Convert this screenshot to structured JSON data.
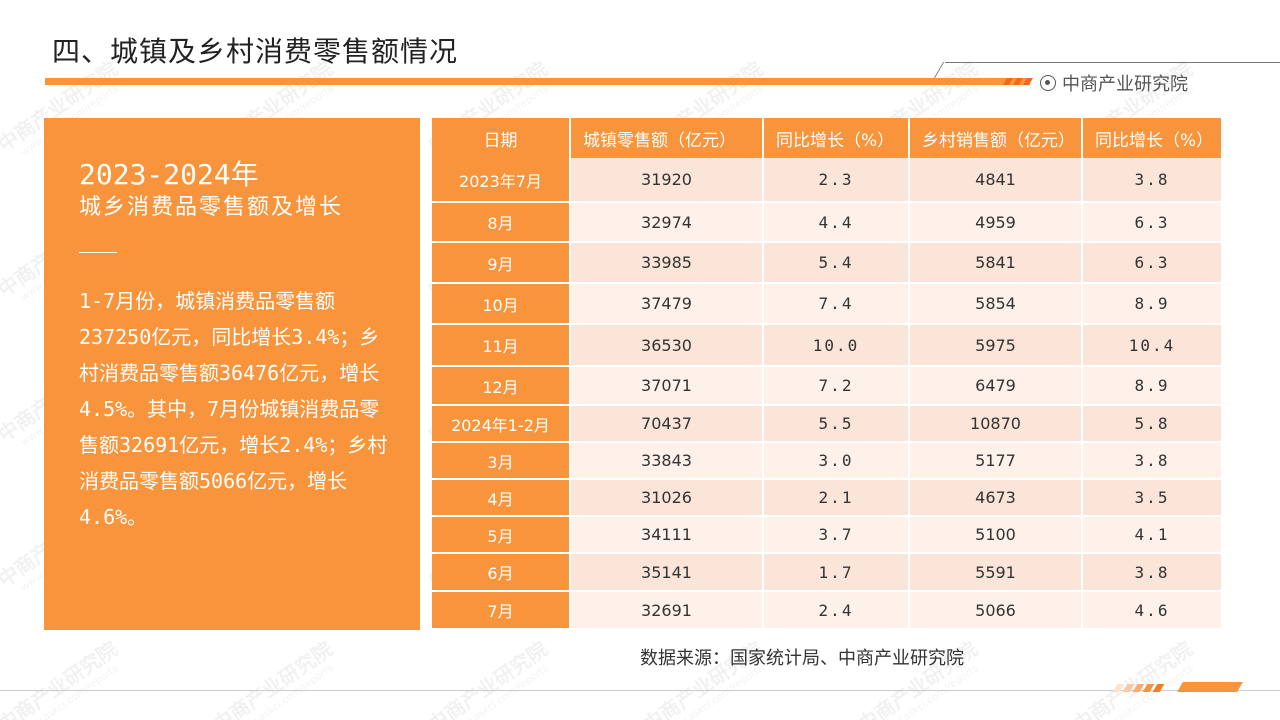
{
  "title": "四、城镇及乡村消费零售额情况",
  "brand": {
    "name": "中商产业研究院",
    "icon": "target-circle-icon"
  },
  "watermark": {
    "text": "中商产业研究院",
    "sub": "www.askci.com/reports"
  },
  "colors": {
    "accent": "#f7943c",
    "row_dark": "#fbe4d8",
    "row_light": "#fdf1ea"
  },
  "left_panel": {
    "heading1": "2023-2024年",
    "heading2": "城乡消费品零售额及增长",
    "body": "1-7月份，城镇消费品零售额237250亿元，同比增长3.4%；乡村消费品零售额36476亿元，增长4.5%。其中，7月份城镇消费品零售额32691亿元，增长2.4%；乡村消费品零售额5066亿元，增长4.6%。"
  },
  "table": {
    "headers": [
      "日期",
      "城镇零售额（亿元）",
      "同比增长（%）",
      "乡村销售额（亿元）",
      "同比增长（%）"
    ],
    "rows": [
      [
        "2023年7月",
        "31920",
        "2.3",
        "4841",
        "3.8"
      ],
      [
        "8月",
        "32974",
        "4.4",
        "4959",
        "6.3"
      ],
      [
        "9月",
        "33985",
        "5.4",
        "5841",
        "6.3"
      ],
      [
        "10月",
        "37479",
        "7.4",
        "5854",
        "8.9"
      ],
      [
        "11月",
        "36530",
        "10.0",
        "5975",
        "10.4"
      ],
      [
        "12月",
        "37071",
        "7.2",
        "6479",
        "8.9"
      ],
      [
        "2024年1-2月",
        "70437",
        "5.5",
        "10870",
        "5.8"
      ],
      [
        "3月",
        "33843",
        "3.0",
        "5177",
        "3.8"
      ],
      [
        "4月",
        "31026",
        "2.1",
        "4673",
        "3.5"
      ],
      [
        "5月",
        "34111",
        "3.7",
        "5100",
        "4.1"
      ],
      [
        "6月",
        "35141",
        "1.7",
        "5591",
        "3.8"
      ],
      [
        "7月",
        "32691",
        "2.4",
        "5066",
        "4.6"
      ]
    ]
  },
  "source": "数据来源：国家统计局、中商产业研究院"
}
